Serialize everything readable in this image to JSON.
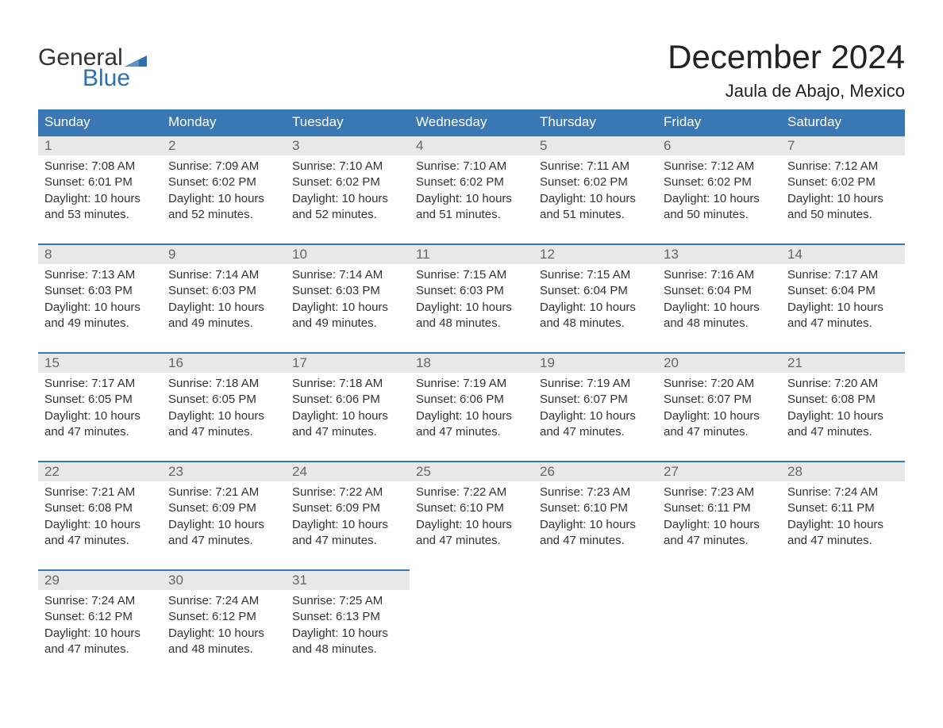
{
  "logo": {
    "top": "General",
    "bottom": "Blue",
    "flag_color": "#2f6fad"
  },
  "title": "December 2024",
  "subtitle": "Jaula de Abajo, Mexico",
  "colors": {
    "header_bg": "#3a78b5",
    "header_text": "#ffffff",
    "daynum_bg": "#e8e8e8",
    "daynum_text": "#666666",
    "rule": "#3a78b5",
    "body_text": "#333333",
    "background": "#ffffff"
  },
  "day_headers": [
    "Sunday",
    "Monday",
    "Tuesday",
    "Wednesday",
    "Thursday",
    "Friday",
    "Saturday"
  ],
  "weeks": [
    [
      {
        "n": "1",
        "sr": "7:08 AM",
        "ss": "6:01 PM",
        "dl": "10 hours and 53 minutes."
      },
      {
        "n": "2",
        "sr": "7:09 AM",
        "ss": "6:02 PM",
        "dl": "10 hours and 52 minutes."
      },
      {
        "n": "3",
        "sr": "7:10 AM",
        "ss": "6:02 PM",
        "dl": "10 hours and 52 minutes."
      },
      {
        "n": "4",
        "sr": "7:10 AM",
        "ss": "6:02 PM",
        "dl": "10 hours and 51 minutes."
      },
      {
        "n": "5",
        "sr": "7:11 AM",
        "ss": "6:02 PM",
        "dl": "10 hours and 51 minutes."
      },
      {
        "n": "6",
        "sr": "7:12 AM",
        "ss": "6:02 PM",
        "dl": "10 hours and 50 minutes."
      },
      {
        "n": "7",
        "sr": "7:12 AM",
        "ss": "6:02 PM",
        "dl": "10 hours and 50 minutes."
      }
    ],
    [
      {
        "n": "8",
        "sr": "7:13 AM",
        "ss": "6:03 PM",
        "dl": "10 hours and 49 minutes."
      },
      {
        "n": "9",
        "sr": "7:14 AM",
        "ss": "6:03 PM",
        "dl": "10 hours and 49 minutes."
      },
      {
        "n": "10",
        "sr": "7:14 AM",
        "ss": "6:03 PM",
        "dl": "10 hours and 49 minutes."
      },
      {
        "n": "11",
        "sr": "7:15 AM",
        "ss": "6:03 PM",
        "dl": "10 hours and 48 minutes."
      },
      {
        "n": "12",
        "sr": "7:15 AM",
        "ss": "6:04 PM",
        "dl": "10 hours and 48 minutes."
      },
      {
        "n": "13",
        "sr": "7:16 AM",
        "ss": "6:04 PM",
        "dl": "10 hours and 48 minutes."
      },
      {
        "n": "14",
        "sr": "7:17 AM",
        "ss": "6:04 PM",
        "dl": "10 hours and 47 minutes."
      }
    ],
    [
      {
        "n": "15",
        "sr": "7:17 AM",
        "ss": "6:05 PM",
        "dl": "10 hours and 47 minutes."
      },
      {
        "n": "16",
        "sr": "7:18 AM",
        "ss": "6:05 PM",
        "dl": "10 hours and 47 minutes."
      },
      {
        "n": "17",
        "sr": "7:18 AM",
        "ss": "6:06 PM",
        "dl": "10 hours and 47 minutes."
      },
      {
        "n": "18",
        "sr": "7:19 AM",
        "ss": "6:06 PM",
        "dl": "10 hours and 47 minutes."
      },
      {
        "n": "19",
        "sr": "7:19 AM",
        "ss": "6:07 PM",
        "dl": "10 hours and 47 minutes."
      },
      {
        "n": "20",
        "sr": "7:20 AM",
        "ss": "6:07 PM",
        "dl": "10 hours and 47 minutes."
      },
      {
        "n": "21",
        "sr": "7:20 AM",
        "ss": "6:08 PM",
        "dl": "10 hours and 47 minutes."
      }
    ],
    [
      {
        "n": "22",
        "sr": "7:21 AM",
        "ss": "6:08 PM",
        "dl": "10 hours and 47 minutes."
      },
      {
        "n": "23",
        "sr": "7:21 AM",
        "ss": "6:09 PM",
        "dl": "10 hours and 47 minutes."
      },
      {
        "n": "24",
        "sr": "7:22 AM",
        "ss": "6:09 PM",
        "dl": "10 hours and 47 minutes."
      },
      {
        "n": "25",
        "sr": "7:22 AM",
        "ss": "6:10 PM",
        "dl": "10 hours and 47 minutes."
      },
      {
        "n": "26",
        "sr": "7:23 AM",
        "ss": "6:10 PM",
        "dl": "10 hours and 47 minutes."
      },
      {
        "n": "27",
        "sr": "7:23 AM",
        "ss": "6:11 PM",
        "dl": "10 hours and 47 minutes."
      },
      {
        "n": "28",
        "sr": "7:24 AM",
        "ss": "6:11 PM",
        "dl": "10 hours and 47 minutes."
      }
    ],
    [
      {
        "n": "29",
        "sr": "7:24 AM",
        "ss": "6:12 PM",
        "dl": "10 hours and 47 minutes."
      },
      {
        "n": "30",
        "sr": "7:24 AM",
        "ss": "6:12 PM",
        "dl": "10 hours and 48 minutes."
      },
      {
        "n": "31",
        "sr": "7:25 AM",
        "ss": "6:13 PM",
        "dl": "10 hours and 48 minutes."
      },
      null,
      null,
      null,
      null
    ]
  ],
  "labels": {
    "sunrise": "Sunrise: ",
    "sunset": "Sunset: ",
    "daylight": "Daylight: "
  }
}
